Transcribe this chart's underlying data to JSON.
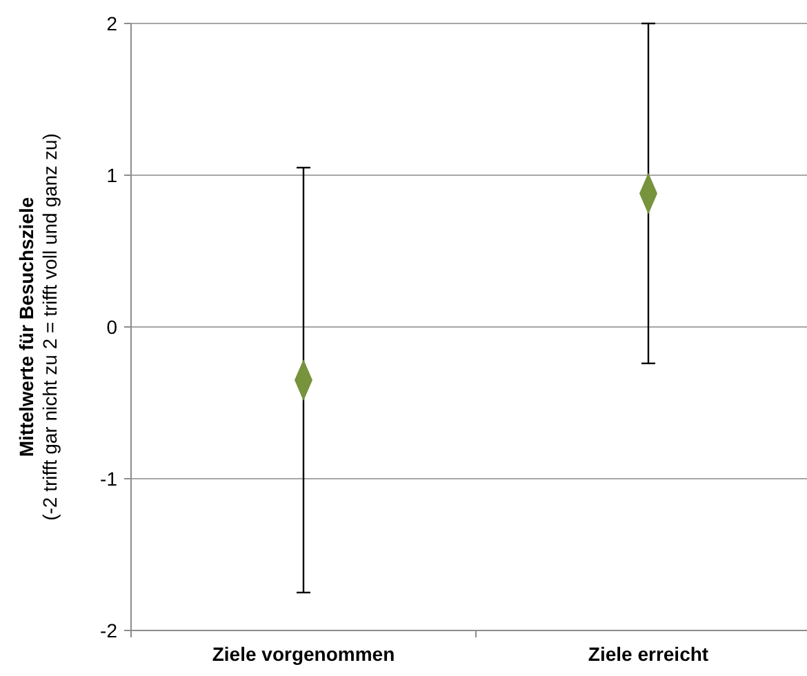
{
  "chart_data": {
    "type": "scatter",
    "ylabel": "Mittelwerte für Besuchsziele\n(-2 trifft gar nicht zu 2 = trifft voll und ganz zu)",
    "categories": [
      "Ziele vorgenommen",
      "Ziele erreicht"
    ],
    "series": [
      {
        "color": "#77933c",
        "values": [
          -0.35,
          0.88
        ],
        "errors": [
          1.4,
          1.12
        ]
      }
    ],
    "ylim": [
      -2,
      2
    ],
    "yticks": [
      -2,
      -1,
      0,
      1,
      2
    ],
    "grid": "y",
    "marker": "diamond"
  }
}
